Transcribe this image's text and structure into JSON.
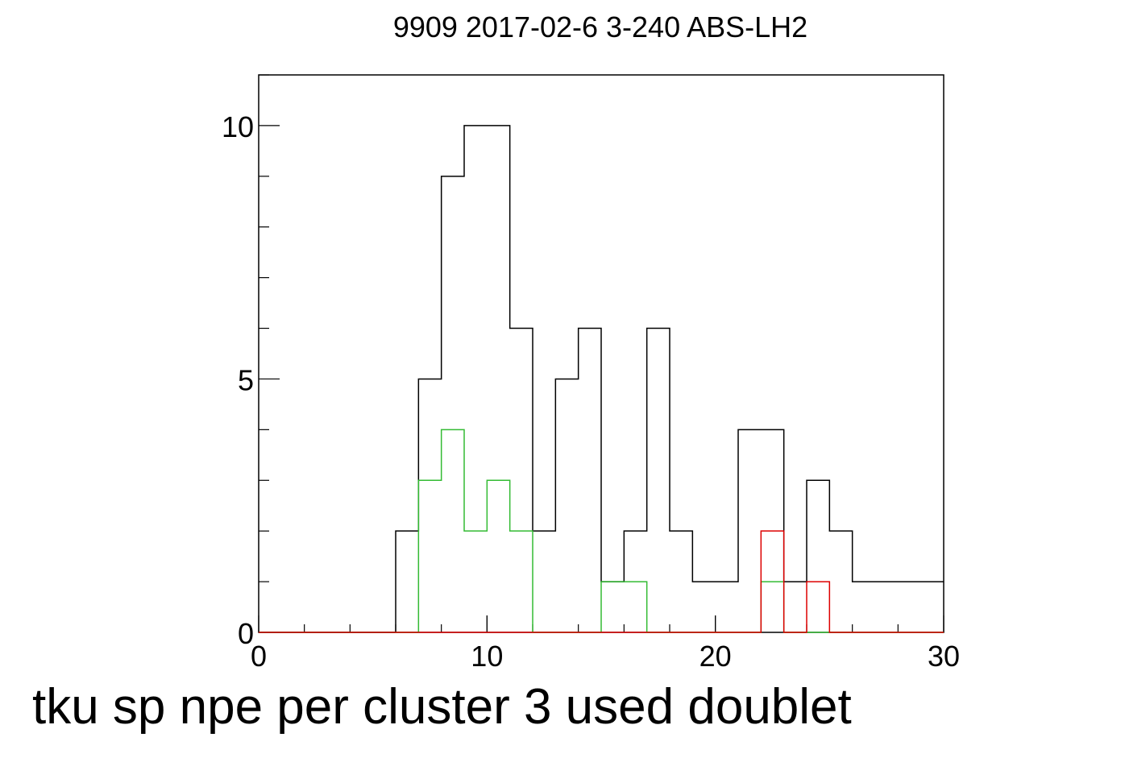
{
  "chart_data": {
    "type": "bar",
    "style": "step-histogram",
    "title": "9909 2017-02-6 3-240 ABS-LH2",
    "xlabel": "tku sp npe per cluster 3 used doublet",
    "ylabel": "",
    "xlim": [
      0,
      30
    ],
    "ylim": [
      0,
      11
    ],
    "x_ticks": [
      0,
      10,
      20,
      30
    ],
    "x_tick_labels": [
      "0",
      "10",
      "20",
      "30"
    ],
    "y_ticks": [
      0,
      5,
      10
    ],
    "y_tick_labels": [
      "0",
      "5",
      "10"
    ],
    "bin_edges": [
      0,
      1,
      2,
      3,
      4,
      5,
      6,
      7,
      8,
      9,
      10,
      11,
      12,
      13,
      14,
      15,
      16,
      17,
      18,
      19,
      20,
      21,
      22,
      23,
      24,
      25,
      26,
      27,
      28,
      29,
      30
    ],
    "grid": false,
    "legend": "none",
    "series": [
      {
        "color": "#000000",
        "values": [
          0,
          0,
          0,
          0,
          0,
          0,
          2,
          5,
          9,
          10,
          10,
          6,
          2,
          5,
          6,
          1,
          2,
          6,
          2,
          1,
          1,
          4,
          4,
          1,
          3,
          2,
          1,
          1,
          1,
          1
        ]
      },
      {
        "color": "#33bb33",
        "values": [
          0,
          0,
          0,
          0,
          0,
          0,
          0,
          3,
          4,
          2,
          3,
          2,
          0,
          0,
          0,
          1,
          1,
          0,
          0,
          0,
          0,
          0,
          1,
          0,
          0,
          0,
          0,
          0,
          0,
          0
        ]
      },
      {
        "color": "#dd0000",
        "values": [
          0,
          0,
          0,
          0,
          0,
          0,
          0,
          0,
          0,
          0,
          0,
          0,
          0,
          0,
          0,
          0,
          0,
          0,
          0,
          0,
          0,
          0,
          2,
          0,
          1,
          0,
          0,
          0,
          0,
          0
        ]
      }
    ]
  }
}
